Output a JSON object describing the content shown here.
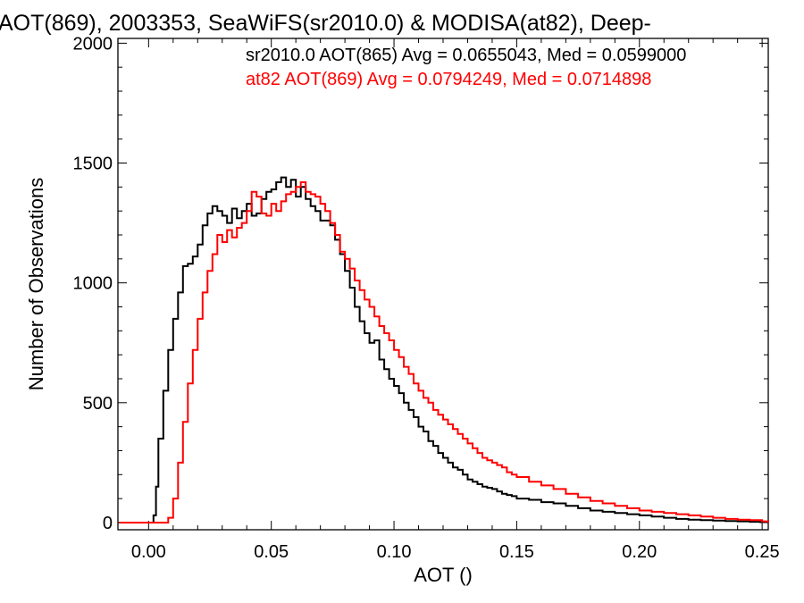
{
  "chart_data": {
    "type": "line",
    "step": true,
    "title": "AOT(869), 2003353, SeaWiFS(sr2010.0) & MODISA(at82), Deep-",
    "xlabel": "AOT ()",
    "ylabel": "Number of Observations",
    "xlim": [
      -0.0125,
      0.2525
    ],
    "ylim": [
      -30,
      2020
    ],
    "x_ticks": [
      0.0,
      0.05,
      0.1,
      0.15,
      0.2,
      0.25
    ],
    "x_tick_labels": [
      "0.00",
      "0.05",
      "0.10",
      "0.15",
      "0.20",
      "0.25"
    ],
    "y_ticks": [
      0,
      500,
      1000,
      1500,
      2000
    ],
    "y_tick_labels": [
      "0",
      "500",
      "1000",
      "1500",
      "2000"
    ],
    "grid": false,
    "legend_position": "top-right",
    "legend": [
      {
        "text": "sr2010.0 AOT(865) Avg = 0.0655043, Med = 0.0599000",
        "color": "#000000"
      },
      {
        "text": "at82 AOT(869) Avg = 0.0794249, Med = 0.0714898",
        "color": "#ff0000"
      }
    ],
    "series": [
      {
        "color": "#000000",
        "x": [
          -0.012,
          0.0,
          0.002,
          0.003,
          0.004,
          0.006,
          0.008,
          0.01,
          0.012,
          0.014,
          0.016,
          0.018,
          0.02,
          0.022,
          0.024,
          0.026,
          0.028,
          0.03,
          0.032,
          0.034,
          0.036,
          0.038,
          0.04,
          0.042,
          0.044,
          0.046,
          0.048,
          0.05,
          0.052,
          0.054,
          0.056,
          0.058,
          0.06,
          0.062,
          0.064,
          0.066,
          0.068,
          0.07,
          0.072,
          0.074,
          0.076,
          0.078,
          0.08,
          0.082,
          0.084,
          0.086,
          0.088,
          0.09,
          0.092,
          0.094,
          0.096,
          0.098,
          0.1,
          0.102,
          0.104,
          0.106,
          0.108,
          0.11,
          0.112,
          0.114,
          0.116,
          0.118,
          0.12,
          0.122,
          0.124,
          0.126,
          0.128,
          0.13,
          0.132,
          0.134,
          0.136,
          0.138,
          0.14,
          0.142,
          0.144,
          0.146,
          0.148,
          0.15,
          0.155,
          0.16,
          0.165,
          0.17,
          0.175,
          0.18,
          0.185,
          0.19,
          0.195,
          0.2,
          0.205,
          0.21,
          0.215,
          0.22,
          0.225,
          0.23,
          0.235,
          0.24,
          0.245,
          0.25,
          0.2525
        ],
        "y": [
          0,
          0,
          30,
          150,
          350,
          550,
          720,
          850,
          960,
          1070,
          1080,
          1110,
          1160,
          1240,
          1290,
          1320,
          1300,
          1280,
          1250,
          1310,
          1270,
          1300,
          1330,
          1280,
          1290,
          1350,
          1380,
          1390,
          1420,
          1440,
          1400,
          1430,
          1360,
          1400,
          1350,
          1320,
          1300,
          1260,
          1260,
          1240,
          1180,
          1120,
          1050,
          980,
          900,
          840,
          790,
          750,
          760,
          680,
          640,
          600,
          570,
          540,
          500,
          470,
          440,
          400,
          380,
          340,
          320,
          290,
          270,
          250,
          230,
          220,
          200,
          180,
          170,
          160,
          150,
          145,
          140,
          130,
          120,
          115,
          110,
          100,
          95,
          85,
          80,
          70,
          60,
          50,
          45,
          40,
          35,
          30,
          25,
          20,
          15,
          12,
          10,
          8,
          6,
          5,
          3,
          2,
          0
        ]
      },
      {
        "color": "#ff0000",
        "x": [
          -0.012,
          0.0,
          0.006,
          0.008,
          0.01,
          0.012,
          0.014,
          0.016,
          0.018,
          0.02,
          0.022,
          0.024,
          0.026,
          0.028,
          0.03,
          0.032,
          0.034,
          0.036,
          0.038,
          0.04,
          0.042,
          0.044,
          0.046,
          0.048,
          0.05,
          0.052,
          0.054,
          0.056,
          0.058,
          0.06,
          0.062,
          0.064,
          0.066,
          0.068,
          0.07,
          0.072,
          0.074,
          0.076,
          0.078,
          0.08,
          0.082,
          0.084,
          0.086,
          0.088,
          0.09,
          0.092,
          0.094,
          0.096,
          0.098,
          0.1,
          0.102,
          0.104,
          0.106,
          0.108,
          0.11,
          0.112,
          0.114,
          0.116,
          0.118,
          0.12,
          0.122,
          0.124,
          0.126,
          0.128,
          0.13,
          0.132,
          0.134,
          0.136,
          0.138,
          0.14,
          0.142,
          0.144,
          0.146,
          0.148,
          0.15,
          0.155,
          0.16,
          0.165,
          0.17,
          0.175,
          0.18,
          0.185,
          0.19,
          0.195,
          0.2,
          0.205,
          0.21,
          0.215,
          0.22,
          0.225,
          0.23,
          0.235,
          0.24,
          0.245,
          0.25,
          0.2525
        ],
        "y": [
          0,
          0,
          0,
          20,
          100,
          250,
          420,
          580,
          720,
          850,
          960,
          1050,
          1120,
          1200,
          1170,
          1220,
          1190,
          1230,
          1250,
          1300,
          1380,
          1360,
          1290,
          1280,
          1330,
          1300,
          1340,
          1370,
          1380,
          1400,
          1420,
          1380,
          1370,
          1360,
          1330,
          1300,
          1250,
          1200,
          1130,
          1100,
          1060,
          1010,
          970,
          930,
          900,
          860,
          820,
          790,
          760,
          720,
          690,
          650,
          620,
          580,
          550,
          520,
          500,
          470,
          450,
          430,
          410,
          390,
          370,
          350,
          330,
          310,
          290,
          270,
          260,
          250,
          240,
          230,
          210,
          200,
          190,
          170,
          155,
          140,
          120,
          105,
          90,
          80,
          70,
          60,
          50,
          45,
          40,
          35,
          30,
          25,
          20,
          15,
          12,
          10,
          5,
          0
        ]
      }
    ]
  }
}
